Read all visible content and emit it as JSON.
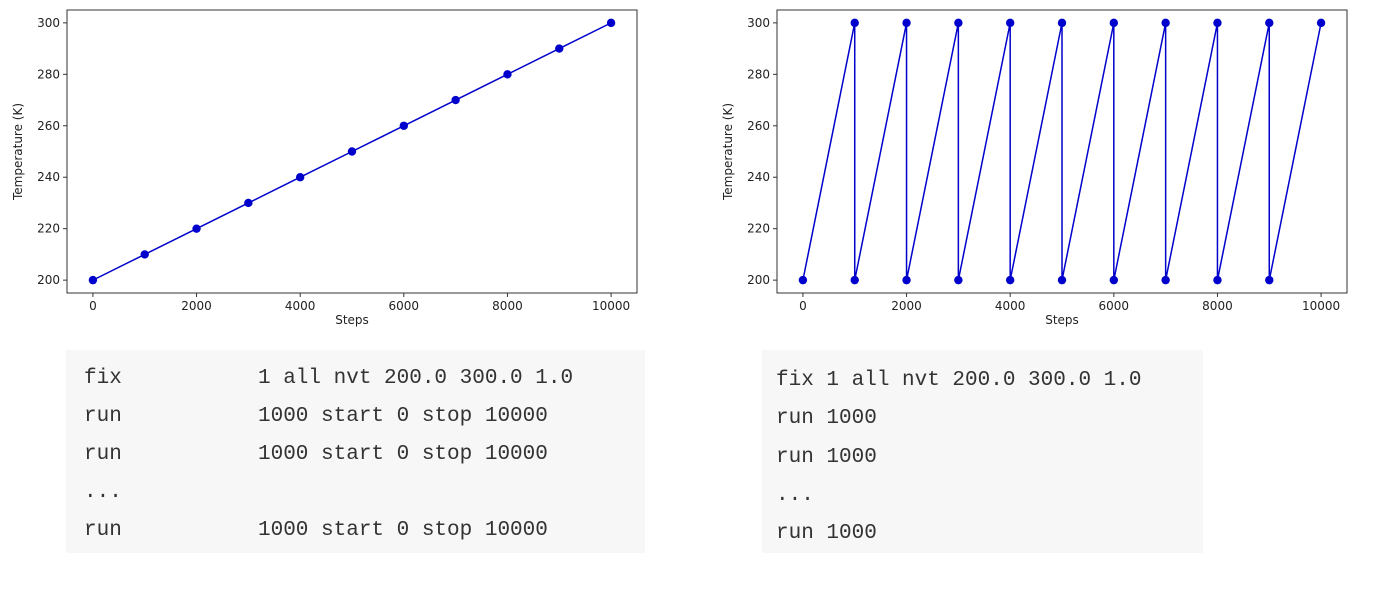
{
  "chart_data": [
    {
      "type": "line",
      "xlabel": "Steps",
      "ylabel": "Temperature (K)",
      "xlim": [
        -500,
        10500
      ],
      "ylim": [
        195,
        305
      ],
      "xticks": [
        0,
        2000,
        4000,
        6000,
        8000,
        10000
      ],
      "yticks": [
        200,
        220,
        240,
        260,
        280,
        300
      ],
      "series": [
        {
          "color": "#0000cc",
          "marker": "circle",
          "x": [
            0,
            1000,
            2000,
            3000,
            4000,
            5000,
            6000,
            7000,
            8000,
            9000,
            10000
          ],
          "y": [
            200,
            210,
            220,
            230,
            240,
            250,
            260,
            270,
            280,
            290,
            300
          ]
        }
      ]
    },
    {
      "type": "line",
      "xlabel": "Steps",
      "ylabel": "Temperature (K)",
      "xlim": [
        -500,
        10500
      ],
      "ylim": [
        195,
        305
      ],
      "xticks": [
        0,
        2000,
        4000,
        6000,
        8000,
        10000
      ],
      "yticks": [
        200,
        220,
        240,
        260,
        280,
        300
      ],
      "series": [
        {
          "color": "#0000cc",
          "marker": "circle",
          "x": [
            0,
            1000,
            1000,
            2000,
            2000,
            3000,
            3000,
            4000,
            4000,
            5000,
            5000,
            6000,
            6000,
            7000,
            7000,
            8000,
            8000,
            9000,
            9000,
            10000
          ],
          "y": [
            200,
            300,
            200,
            300,
            200,
            300,
            200,
            300,
            200,
            300,
            200,
            300,
            200,
            300,
            200,
            300,
            200,
            300,
            200,
            300
          ]
        }
      ]
    }
  ],
  "code_left": {
    "lines": [
      {
        "kw": "fix",
        "args": "1 all nvt 200.0 300.0 1.0"
      },
      {
        "kw": "run",
        "args": "1000 start 0 stop 10000"
      },
      {
        "kw": "run",
        "args": "1000 start 0 stop 10000"
      },
      {
        "kw": "...",
        "args": ""
      },
      {
        "kw": "run",
        "args": "1000 start 0 stop 10000"
      }
    ]
  },
  "code_right": {
    "lines": [
      "fix 1 all nvt 200.0 300.0 1.0",
      "run 1000",
      "run 1000",
      "...",
      "run 1000"
    ]
  }
}
